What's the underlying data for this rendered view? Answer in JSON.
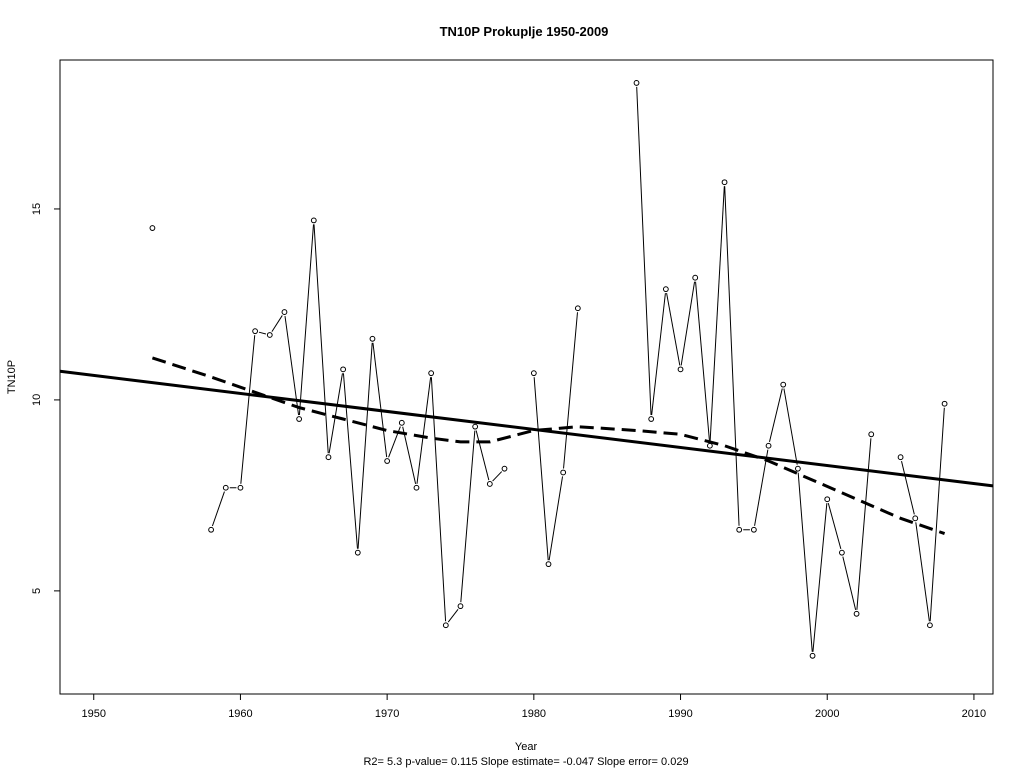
{
  "chart_data": {
    "type": "line",
    "title": "TN10P   Prokuplje 1950-2009",
    "xlabel": "Year",
    "ylabel": "TN10P",
    "footer": "R2= 5.3  p-value= 0.115  Slope estimate= -0.047  Slope error= 0.029",
    "xlim": [
      1947.7,
      2011.3
    ],
    "ylim": [
      2.3,
      18.9
    ],
    "x_ticks": [
      1950,
      1960,
      1970,
      1980,
      1990,
      2000,
      2010
    ],
    "y_ticks": [
      5,
      10,
      15
    ],
    "grid": false,
    "series": [
      {
        "style": "line-with-open-points",
        "color": "#000000",
        "x": [
          1954,
          1958,
          1959,
          1960,
          1961,
          1962,
          1963,
          1964,
          1965,
          1966,
          1967,
          1968,
          1969,
          1970,
          1971,
          1972,
          1973,
          1974,
          1975,
          1976,
          1977,
          1978,
          1979,
          1980,
          1981,
          1982,
          1983,
          1987,
          1988,
          1989,
          1990,
          1991,
          1992,
          1993,
          1994,
          1995,
          1996,
          1997,
          1998,
          1999,
          2000,
          2001,
          2002,
          2003,
          2005,
          2006,
          2007,
          2008
        ],
        "values": [
          14.5,
          6.6,
          7.7,
          7.7,
          11.8,
          11.7,
          12.3,
          9.5,
          14.7,
          8.5,
          10.8,
          6.0,
          11.6,
          8.4,
          9.4,
          7.7,
          10.7,
          4.1,
          4.6,
          9.3,
          7.8,
          8.2,
          null,
          10.7,
          5.7,
          8.1,
          12.4,
          18.3,
          9.5,
          12.9,
          10.8,
          13.2,
          8.8,
          15.7,
          6.6,
          6.6,
          8.8,
          10.4,
          8.2,
          3.3,
          7.4,
          6.0,
          4.4,
          9.1,
          8.5,
          6.9,
          4.1,
          9.9
        ]
      },
      {
        "style": "linear-trend",
        "color": "#000000",
        "x": [
          1947.7,
          2011.3
        ],
        "values": [
          10.75,
          7.75
        ]
      },
      {
        "style": "dashed-smooth",
        "color": "#000000",
        "x": [
          1954,
          1958,
          1961,
          1964,
          1967,
          1970,
          1973,
          1975,
          1977,
          1980,
          1983,
          1987,
          1990,
          1993,
          1996,
          1999,
          2002,
          2005,
          2008
        ],
        "values": [
          11.1,
          10.6,
          10.2,
          9.8,
          9.5,
          9.2,
          9.0,
          8.9,
          8.9,
          9.2,
          9.3,
          9.2,
          9.1,
          8.8,
          8.4,
          7.9,
          7.4,
          6.9,
          6.5
        ]
      }
    ]
  }
}
